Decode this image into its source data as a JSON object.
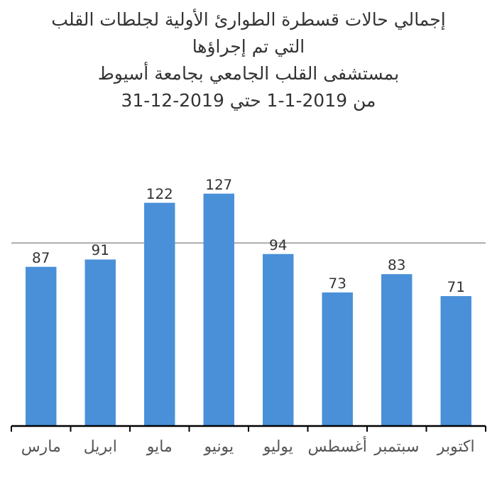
{
  "chart_data": {
    "type": "bar",
    "title": "إجمالي حالات قسطرة الطوارئ الأولية لجلطات القلب\nالتي تم إجراؤها\nبمستشفى القلب الجامعي بجامعة أسيوط\nمن 2019-1-1 حتي 2019-12-31",
    "categories": [
      "مارس",
      "ابريل",
      "مايو",
      "يونيو",
      "يوليو",
      "أغسطس",
      "سبتمبر",
      "اكتوبر"
    ],
    "values": [
      87,
      91,
      122,
      127,
      94,
      73,
      83,
      71
    ],
    "color": "#4a90d9",
    "ref_lines": [
      {
        "axis": "y",
        "value": 100,
        "color": "#aaaaaa"
      }
    ],
    "tick_labels": "x",
    "data_labels": true
  }
}
